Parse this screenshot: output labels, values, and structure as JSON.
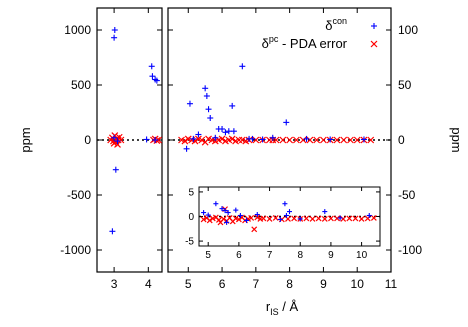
{
  "chart_data": {
    "type": "scatter",
    "xlabel": "r",
    "xlabel_sub": "IS",
    "xlabel_unit": " / Å",
    "ylabel_left": "ppm",
    "ylabel_right": "ppm",
    "grid": false,
    "legend_position": "top-right",
    "legend": [
      {
        "base": "δ",
        "sup": "con",
        "suffix": "",
        "marker": "plus",
        "color": "#0000ff"
      },
      {
        "base": "δ",
        "sup": "pc",
        "suffix": " - PDA error",
        "marker": "cross",
        "color": "#ff0000"
      }
    ],
    "panels": {
      "left": {
        "xlim": [
          2.5,
          4.4
        ],
        "ylim": [
          -1200,
          1200
        ],
        "xticks": [
          3,
          4
        ],
        "yticks": [
          -1000,
          -500,
          0,
          500,
          1000
        ],
        "zero_line": true
      },
      "main": {
        "xlim": [
          4.4,
          11
        ],
        "ylim": [
          -120,
          120
        ],
        "xticks": [
          5,
          6,
          7,
          8,
          9,
          10,
          11
        ],
        "yticks_right": [
          -100,
          -50,
          0,
          50,
          100
        ],
        "zero_line": true
      },
      "inset": {
        "xlim": [
          4.7,
          10.6
        ],
        "ylim": [
          -6,
          6
        ],
        "xticks": [
          5,
          6,
          7,
          8,
          9,
          10
        ],
        "yticks": [
          -5,
          0,
          5
        ],
        "zero_line": true
      }
    },
    "series": [
      {
        "label_index": 0,
        "marker": "plus",
        "color": "#0000ff",
        "left_points": [
          [
            2.95,
            -830
          ],
          [
            3.02,
            1000
          ],
          [
            3.0,
            930
          ],
          [
            3.05,
            -270
          ],
          [
            3.0,
            20
          ],
          [
            3.1,
            -10
          ],
          [
            4.1,
            670
          ],
          [
            4.12,
            580
          ],
          [
            4.2,
            550
          ],
          [
            4.25,
            540
          ],
          [
            4.2,
            0
          ],
          [
            3.95,
            5
          ]
        ],
        "main_points": [
          [
            4.95,
            -8
          ],
          [
            5.05,
            33
          ],
          [
            5.3,
            5
          ],
          [
            5.5,
            47
          ],
          [
            5.55,
            40
          ],
          [
            5.6,
            28
          ],
          [
            5.65,
            20
          ],
          [
            5.9,
            10
          ],
          [
            6.0,
            10
          ],
          [
            6.1,
            7
          ],
          [
            6.2,
            8
          ],
          [
            6.3,
            31
          ],
          [
            6.35,
            8
          ],
          [
            6.6,
            67
          ],
          [
            6.8,
            1
          ],
          [
            7.5,
            2
          ],
          [
            7.9,
            16
          ],
          [
            8.5,
            1
          ],
          [
            9.2,
            0.5
          ],
          [
            10.2,
            0.5
          ],
          [
            5.15,
            1
          ],
          [
            5.8,
            2
          ],
          [
            6.9,
            1
          ],
          [
            7.2,
            0.5
          ]
        ],
        "inset_points": [
          [
            4.85,
            0.8
          ],
          [
            5.0,
            0.3
          ],
          [
            5.25,
            2.6
          ],
          [
            5.45,
            1.6
          ],
          [
            5.55,
            1.2
          ],
          [
            5.6,
            -1.2
          ],
          [
            5.65,
            0.8
          ],
          [
            5.9,
            1.3
          ],
          [
            6.05,
            0.2
          ],
          [
            6.25,
            -0.8
          ],
          [
            6.6,
            0.4
          ],
          [
            7.35,
            -0.6
          ],
          [
            7.5,
            2.6
          ],
          [
            7.55,
            0.2
          ],
          [
            7.65,
            1.0
          ],
          [
            8.0,
            -0.5
          ],
          [
            8.8,
            1.0
          ],
          [
            9.3,
            -0.3
          ],
          [
            10.25,
            0.2
          ]
        ]
      },
      {
        "label_index": 1,
        "marker": "cross",
        "color": "#ff0000",
        "left_points": [
          [
            2.9,
            0
          ],
          [
            2.95,
            20
          ],
          [
            3.0,
            -30
          ],
          [
            3.02,
            40
          ],
          [
            3.05,
            -15
          ],
          [
            3.08,
            15
          ],
          [
            3.1,
            -40
          ],
          [
            3.12,
            0
          ],
          [
            3.15,
            25
          ],
          [
            2.98,
            -10
          ],
          [
            3.2,
            0
          ],
          [
            4.15,
            0
          ],
          [
            4.2,
            10
          ],
          [
            4.25,
            -5
          ],
          [
            4.3,
            0
          ]
        ],
        "main_points": [
          [
            4.8,
            0
          ],
          [
            4.9,
            -1
          ],
          [
            5.0,
            1
          ],
          [
            5.1,
            0
          ],
          [
            5.2,
            -1
          ],
          [
            5.3,
            1
          ],
          [
            5.4,
            0
          ],
          [
            5.5,
            -2
          ],
          [
            5.6,
            1
          ],
          [
            5.7,
            0
          ],
          [
            5.8,
            -1
          ],
          [
            5.9,
            0
          ],
          [
            6.0,
            1
          ],
          [
            6.1,
            -1
          ],
          [
            6.2,
            0
          ],
          [
            6.3,
            1
          ],
          [
            6.4,
            -1
          ],
          [
            6.5,
            0
          ],
          [
            6.6,
            0
          ],
          [
            6.7,
            -1
          ],
          [
            6.8,
            0
          ],
          [
            7.0,
            0
          ],
          [
            7.2,
            0
          ],
          [
            7.4,
            0
          ],
          [
            7.5,
            0
          ],
          [
            7.6,
            0
          ],
          [
            7.8,
            0
          ],
          [
            8.0,
            0
          ],
          [
            8.2,
            0
          ],
          [
            8.4,
            0
          ],
          [
            8.6,
            0
          ],
          [
            8.8,
            0
          ],
          [
            9.0,
            0
          ],
          [
            9.2,
            0
          ],
          [
            9.4,
            0
          ],
          [
            9.6,
            0
          ],
          [
            9.8,
            0
          ],
          [
            10.0,
            0
          ],
          [
            10.2,
            0
          ],
          [
            10.4,
            0
          ]
        ],
        "inset_points": [
          [
            4.85,
            -0.6
          ],
          [
            4.95,
            -0.3
          ],
          [
            5.05,
            -0.8
          ],
          [
            5.15,
            -0.4
          ],
          [
            5.25,
            -0.2
          ],
          [
            5.35,
            -0.7
          ],
          [
            5.4,
            -1.2
          ],
          [
            5.5,
            -0.5
          ],
          [
            5.55,
            1.5
          ],
          [
            5.6,
            -0.9
          ],
          [
            5.7,
            -0.3
          ],
          [
            5.8,
            -1.0
          ],
          [
            5.9,
            -0.4
          ],
          [
            6.0,
            -0.6
          ],
          [
            6.1,
            -0.2
          ],
          [
            6.2,
            -0.8
          ],
          [
            6.3,
            -0.5
          ],
          [
            6.4,
            -0.3
          ],
          [
            6.5,
            -2.6
          ],
          [
            6.6,
            -0.2
          ],
          [
            6.7,
            -0.5
          ],
          [
            6.8,
            -0.4
          ],
          [
            7.0,
            -0.5
          ],
          [
            7.2,
            -0.3
          ],
          [
            7.4,
            -0.6
          ],
          [
            7.6,
            -0.5
          ],
          [
            7.8,
            -0.4
          ],
          [
            8.0,
            -0.5
          ],
          [
            8.2,
            -0.4
          ],
          [
            8.4,
            -0.5
          ],
          [
            8.6,
            -0.4
          ],
          [
            8.8,
            -0.5
          ],
          [
            9.0,
            -0.4
          ],
          [
            9.2,
            -0.4
          ],
          [
            9.4,
            -0.5
          ],
          [
            9.6,
            -0.4
          ],
          [
            9.8,
            -0.4
          ],
          [
            10.0,
            -0.5
          ],
          [
            10.2,
            -0.4
          ],
          [
            10.4,
            -0.3
          ]
        ]
      }
    ]
  }
}
